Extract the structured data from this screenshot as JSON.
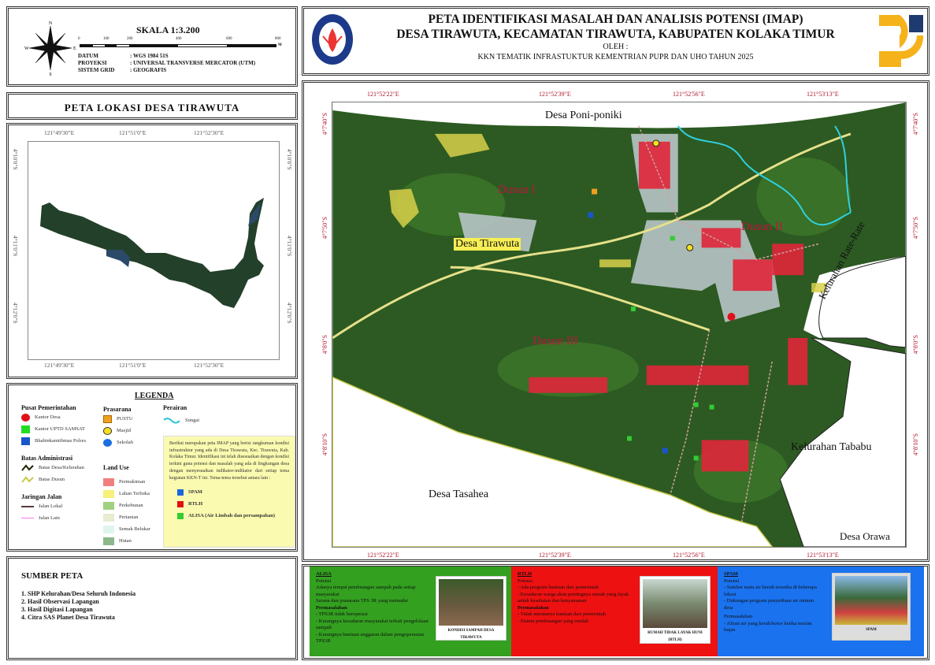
{
  "scale": {
    "label": "SKALA 1:3.200",
    "ticks": [
      "0",
      "100",
      "200",
      "400",
      "600",
      "800"
    ],
    "unit": "M"
  },
  "compass": {
    "n": "N",
    "s": "S",
    "e": "E",
    "w": "W"
  },
  "meta": [
    {
      "key": "DATUM",
      "value": ": WGS 1984 51S"
    },
    {
      "key": "PROYEKSI",
      "value": ": UNIVERSAL TRANSVERSE MERCATOR (UTM)"
    },
    {
      "key": "SISTEM GRID",
      "value": ": GEOGRAFIS"
    }
  ],
  "location_map": {
    "title": "PETA LOKASI DESA TIRAWUTA",
    "lon_labels": [
      "121°49'30\"E",
      "121°51'0\"E",
      "121°52'30\"E"
    ],
    "lat_labels": [
      "4°10'0\"S",
      "4°11'0\"S",
      "4°12'0\"S"
    ]
  },
  "legend": {
    "title": "LEGENDA",
    "pusat_title": "Pusat Pemerintahan",
    "pusat": [
      {
        "label": "Kantor Desa",
        "color": "#e0101a"
      },
      {
        "label": "Kantor UPTD SAMSAT",
        "color": "#22dd22"
      },
      {
        "label": "Bhabinkamtibmas Polres",
        "color": "#1a55cc"
      }
    ],
    "prasarana_title": "Prasarana",
    "prasarana": [
      {
        "label": "PUSTU",
        "color": "#f0a020"
      },
      {
        "label": "Masjid",
        "color": "#f5e020"
      },
      {
        "label": "Sekolah",
        "color": "#1a6ee0"
      }
    ],
    "perairan_title": "Perairan",
    "perairan": [
      {
        "label": "Sungai",
        "color": "#2ec6d8"
      }
    ],
    "batas_title": "Batas Administrasi",
    "batas": [
      {
        "label": "Batas Desa/Kelurahan",
        "color": "#222200"
      },
      {
        "label": "Batas Dusun",
        "color": "#c8c84a"
      }
    ],
    "jalan_title": "Jaringan Jalan",
    "jalan": [
      {
        "label": "Jalan Lokal",
        "color": "#5a3a3a"
      },
      {
        "label": "Jalan Lain",
        "color": "#ee77ee"
      }
    ],
    "landuse_title": "Land Use",
    "landuse": [
      {
        "label": "Permukiman",
        "color": "#f08080"
      },
      {
        "label": "Lahan Terbuka",
        "color": "#f7f07a"
      },
      {
        "label": "Perkebunan",
        "color": "#a0d080"
      },
      {
        "label": "Pertanian",
        "color": "#e8ecd0"
      },
      {
        "label": "Semak Belukar",
        "color": "#e0f5f0"
      },
      {
        "label": "Hutan",
        "color": "#8cb88c"
      }
    ],
    "note": "Berikut merupakan peta IMAP yang berisi rangkuman kondisi infrastruktur yang ada di Desa Tirawuta, Kec. Tirawuta, Kab. Kolaka Timur. Identifikasi ini telah disesuaikan dengan kondisi terkini guna potensi dan masalah yang ada di lingkungan desa dengan menyesuaikan indikator-indikator dari setiap tema kegiatan KKN-T ini. Tema-tema tersebut antara lain :",
    "themes": [
      {
        "label": "SPAM",
        "color": "#1a66dd"
      },
      {
        "label": "RTLH",
        "color": "#e01010"
      },
      {
        "label": "ALISA (Air Limbah dan persampahan)",
        "color": "#33cc33"
      }
    ]
  },
  "sumber": {
    "title": "SUMBER PETA",
    "items": [
      "1. SHP Kelurahan/Desa Seluruh Indonesia",
      "2. Hasil Observasi Lapangan",
      "3. Hasil Digitasi Lapangan",
      "4. Citra SAS Planet Desa Tirawuta"
    ]
  },
  "header": {
    "title1": "PETA IDENTIFIKASI MASALAH DAN ANALISIS POTENSI (IMAP)",
    "title2": "DESA TIRAWUTA, KECAMATAN TIRAWUTA, KABUPATEN KOLAKA TIMUR",
    "by": "OLEH :",
    "org": "KKN TEMATIK INFRASTUKTUR KEMENTRIAN PUPR DAN UHO TAHUN 2025",
    "left_logo": "UNIVERSITAS HALU OLEO",
    "right_logo_color": "#f5b21a"
  },
  "main_map": {
    "lon_labels": [
      "121°52'22\"E",
      "121°52'39\"E",
      "121°52'56\"E",
      "121°53'13\"E"
    ],
    "lat_labels": [
      "4°7'40\"S",
      "4°7'50\"S",
      "4°8'0\"S",
      "4°8'10\"S"
    ],
    "places": {
      "north": "Desa Poni-poniki",
      "east": "Kelurahan Rate-Rate",
      "southeast": "Kelurahan Tababu",
      "southwest": "Desa Tasahea",
      "south_east_corner": "Desa Orawa",
      "village": "Desa Tirawuta"
    },
    "dusun": [
      "Dusun I",
      "Dusun II",
      "Dusun III"
    ]
  },
  "panels": [
    {
      "title": "ALISA",
      "color": "#33a020",
      "potensi_title": "Potensi",
      "potensi": [
        "Adanya tempat pembuangan sampah pada setiap masyarakat",
        "Sarana dan prasarana TPS 3R yang memadai"
      ],
      "masalah_title": "Permasalahan",
      "masalah": [
        "- TPS3R tidak beroperasi",
        "- Kurangnya kesadaran masyarakat terkait pengelolaan sampah",
        "- Kurangnya bantuan anggaran dalam pengoperasian TPS3R"
      ],
      "photo_caption": "KONDISI SAMPAH DESA TIRAWUTA"
    },
    {
      "title": "RTLH",
      "color": "#ee1111",
      "potensi_title": "Potensi",
      "potensi": [
        "- Ada program bantuan dari pemerintah",
        "- Kesadaran warga akan pentingnya rumah yang layak untuk kesehatan dan kenyamanan"
      ],
      "masalah_title": "Permasalahan",
      "masalah": [
        "- Tidak meratanya bantuan dari pemerintah",
        "- Sistem pembuangan yang rendah"
      ],
      "photo_caption": "RUMAH TIDAK LAYAK HUNI (RTLH)"
    },
    {
      "title": "SPAM",
      "color": "#1a72ee",
      "potensi_title": "Potensi",
      "potensi": [
        "- Sumber mata air bersih tersedia di beberapa lokasi",
        "- Dukungan program penyediaan air minum desa"
      ],
      "masalah_title": "Permasalahan",
      "masalah": [
        "- Aliran air yang keruh/kotor ketika musim hujan"
      ],
      "photo_caption": "SPAM"
    }
  ]
}
